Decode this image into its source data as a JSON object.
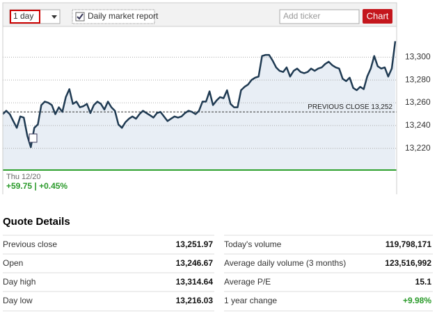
{
  "toolbar": {
    "range": "1 day",
    "checkbox_label": "Daily market report",
    "ticker_placeholder": "Add ticker",
    "button": "Chart"
  },
  "chart_data": {
    "type": "line",
    "color": "#1f3a52",
    "area_color": "#e8eef5",
    "values": [
      13250,
      13253,
      13250,
      13244,
      13238,
      13248,
      13247,
      13231,
      13221,
      13238,
      13241,
      13258,
      13261,
      13260,
      13258,
      13250,
      13256,
      13252,
      13265,
      13272,
      13259,
      13261,
      13256,
      13257,
      13259,
      13251,
      13258,
      13261,
      13259,
      13254,
      13261,
      13256,
      13253,
      13241,
      13238,
      13243,
      13246,
      13248,
      13246,
      13250,
      13253,
      13251,
      13249,
      13247,
      13251,
      13252,
      13248,
      13244,
      13246,
      13248,
      13247,
      13248,
      13251,
      13253,
      13252,
      13250,
      13253,
      13261,
      13261,
      13270,
      13258,
      13262,
      13265,
      13264,
      13271,
      13259,
      13256,
      13256,
      13271,
      13274,
      13276,
      13280,
      13282,
      13283,
      13301,
      13302,
      13302,
      13297,
      13291,
      13288,
      13287,
      13291,
      13283,
      13288,
      13290,
      13287,
      13286,
      13287,
      13290,
      13288,
      13290,
      13291,
      13294,
      13296,
      13293,
      13291,
      13290,
      13281,
      13279,
      13282,
      13273,
      13271,
      13274,
      13272,
      13283,
      13290,
      13301,
      13292,
      13290,
      13291,
      13283,
      13290,
      13314
    ],
    "ylim": [
      13201,
      13327
    ],
    "yticks": [
      {
        "value": 13220,
        "label": "13,220"
      },
      {
        "value": 13240,
        "label": "13,240"
      },
      {
        "value": 13260,
        "label": "13,260"
      },
      {
        "value": 13280,
        "label": "13,280"
      },
      {
        "value": 13300,
        "label": "13,300"
      }
    ],
    "grid": true,
    "reference": {
      "value": 13252,
      "label": "PREVIOUS CLOSE 13,252"
    },
    "date": "Thu 12/20",
    "change": "+59.75 | +0.45%"
  },
  "quote_details": {
    "title": "Quote Details",
    "left": [
      [
        "Previous close",
        "13,251.97"
      ],
      [
        "Open",
        "13,246.67"
      ],
      [
        "Day high",
        "13,314.64"
      ],
      [
        "Day low",
        "13,216.03"
      ]
    ],
    "right": [
      [
        "Today's volume",
        "119,798,171"
      ],
      [
        "Average daily volume (3 months)",
        "123,516,992"
      ],
      [
        "Average P/E",
        "15.1"
      ],
      [
        "1 year change",
        "+9.98%"
      ]
    ]
  }
}
